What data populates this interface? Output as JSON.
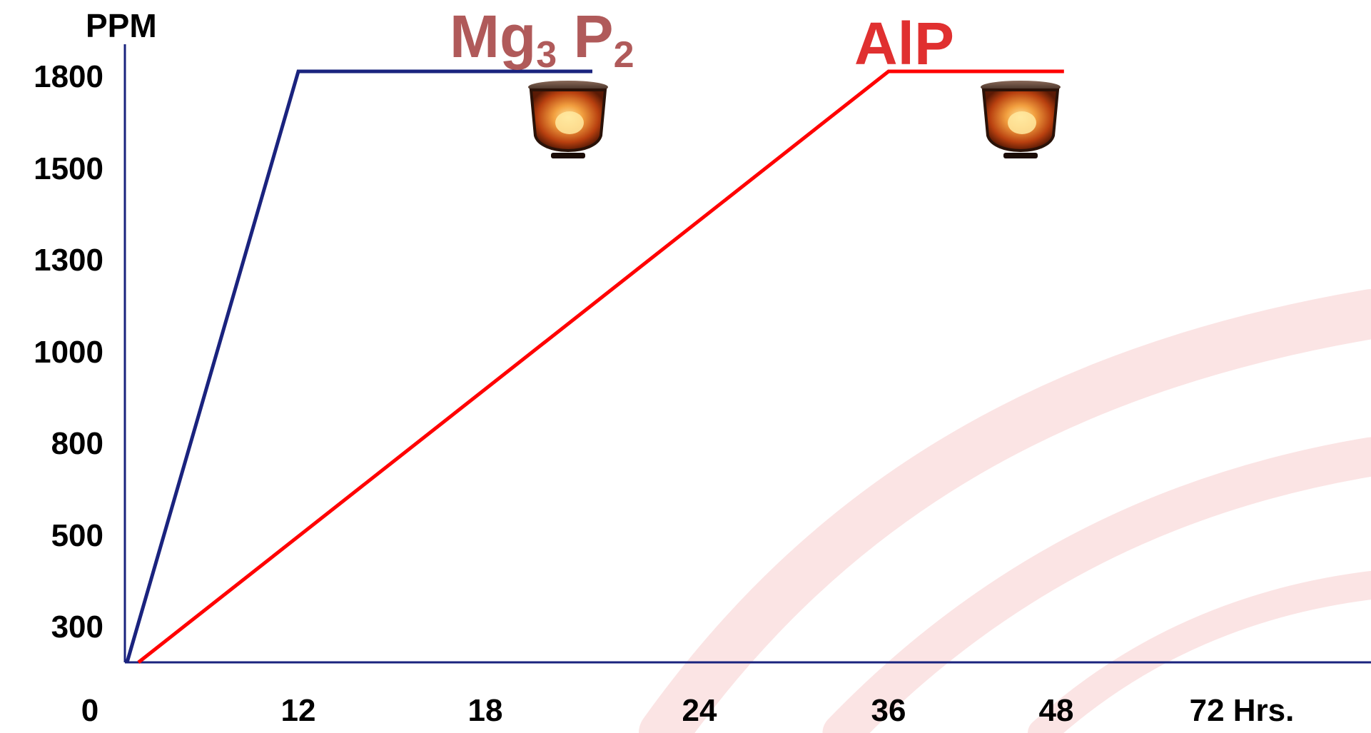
{
  "chart_data": {
    "type": "line",
    "ylabel": "PPM",
    "x_ticks": [
      "0",
      "12",
      "18",
      "24",
      "36",
      "48",
      "72 Hrs."
    ],
    "y_ticks": [
      "300",
      "500",
      "800",
      "1000",
      "1300",
      "1500",
      "1800"
    ],
    "grid": false,
    "legend": "none",
    "series": [
      {
        "name_parts": {
          "base1": "Mg",
          "sub1": "3",
          "base2": " P",
          "sub2": "2"
        },
        "color": "#1a237e",
        "label_color": "#b05a5a",
        "points": [
          {
            "x": 0,
            "y": 0
          },
          {
            "x": 12,
            "y": 1800
          },
          {
            "x": 21,
            "y": 1800
          }
        ],
        "icon": "lamp-icon"
      },
      {
        "name": "AlP",
        "color": "#ff0000",
        "label_color": "#e03030",
        "points": [
          {
            "x": 0,
            "y": 0
          },
          {
            "x": 36,
            "y": 1800
          },
          {
            "x": 49,
            "y": 1800
          }
        ],
        "icon": "lamp-icon"
      }
    ]
  }
}
